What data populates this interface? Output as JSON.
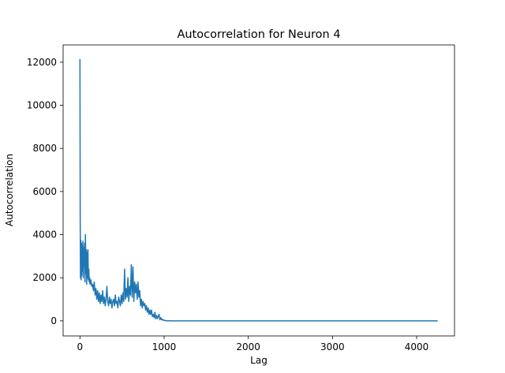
{
  "chart_data": {
    "type": "line",
    "title": "Autocorrelation for Neuron 4",
    "xlabel": "Lag",
    "ylabel": "Autocorrelation",
    "xlim": [
      -200,
      4450
    ],
    "ylim": [
      -700,
      12800
    ],
    "xticks": [
      0,
      1000,
      2000,
      3000,
      4000
    ],
    "yticks": [
      0,
      2000,
      4000,
      6000,
      8000,
      10000,
      12000
    ],
    "xtick_labels": [
      "0",
      "1000",
      "2000",
      "3000",
      "4000"
    ],
    "ytick_labels": [
      "0",
      "2000",
      "4000",
      "6000",
      "8000",
      "10000",
      "12000"
    ],
    "grid": false,
    "legend": "none",
    "series": [
      {
        "color": "#1f77b4",
        "x": [
          0,
          3,
          6,
          10,
          14,
          18,
          22,
          26,
          30,
          35,
          40,
          45,
          50,
          55,
          60,
          65,
          70,
          75,
          80,
          85,
          90,
          95,
          100,
          105,
          110,
          115,
          120,
          130,
          140,
          150,
          160,
          170,
          180,
          190,
          200,
          210,
          220,
          230,
          240,
          250,
          260,
          270,
          280,
          290,
          300,
          310,
          320,
          330,
          340,
          350,
          360,
          370,
          380,
          390,
          400,
          410,
          420,
          430,
          440,
          450,
          460,
          470,
          480,
          490,
          500,
          510,
          520,
          530,
          540,
          550,
          560,
          570,
          580,
          590,
          600,
          610,
          620,
          630,
          640,
          650,
          660,
          670,
          680,
          690,
          700,
          710,
          720,
          730,
          740,
          750,
          760,
          770,
          780,
          790,
          800,
          810,
          820,
          830,
          840,
          850,
          860,
          870,
          880,
          890,
          900,
          910,
          920,
          930,
          940,
          950,
          960,
          970,
          980,
          990,
          1000,
          1010,
          1020,
          1050,
          1100,
          1200,
          1500,
          2000,
          2500,
          3000,
          3500,
          4000,
          4250
        ],
        "y": [
          12150,
          4800,
          2000,
          3750,
          1900,
          3600,
          2100,
          3500,
          2300,
          3700,
          2000,
          3400,
          2500,
          3600,
          1800,
          4000,
          2200,
          3300,
          1700,
          3200,
          2000,
          3300,
          1900,
          2400,
          1800,
          2000,
          1700,
          1900,
          1600,
          1700,
          1400,
          1800,
          1200,
          1500,
          1000,
          1400,
          900,
          1300,
          800,
          1200,
          900,
          1400,
          800,
          1100,
          700,
          1000,
          1600,
          900,
          700,
          1100,
          800,
          1000,
          600,
          900,
          1000,
          700,
          1200,
          800,
          900,
          600,
          1100,
          900,
          700,
          1200,
          800,
          1300,
          900,
          2400,
          1000,
          1500,
          1100,
          2000,
          900,
          1600,
          1200,
          2600,
          1100,
          2500,
          900,
          1800,
          1300,
          1700,
          1000,
          1800,
          1100,
          1400,
          700,
          1000,
          600,
          900,
          700,
          800,
          500,
          700,
          400,
          600,
          300,
          500,
          300,
          500,
          200,
          300,
          150,
          400,
          100,
          250,
          100,
          200,
          300,
          50,
          150,
          50,
          80,
          20,
          40,
          10,
          5,
          2,
          0,
          0,
          0,
          0,
          0,
          0,
          0,
          0,
          0
        ]
      }
    ]
  }
}
